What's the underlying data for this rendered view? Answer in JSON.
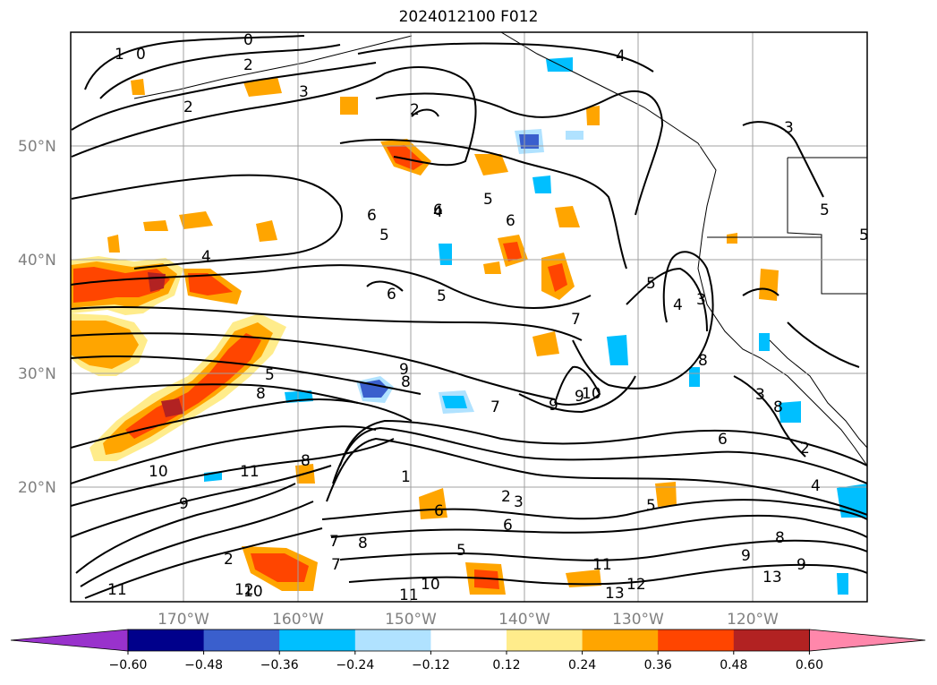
{
  "title": "2024012100 F012",
  "map": {
    "lat_labels": [
      "50°N",
      "40°N",
      "30°N",
      "20°N"
    ],
    "lon_labels": [
      "170°W",
      "160°W",
      "150°W",
      "140°W",
      "130°W",
      "120°W"
    ],
    "contour_labels": [
      "1",
      "0",
      "0",
      "2",
      "3",
      "2",
      "2",
      "4",
      "3",
      "4",
      "6",
      "5",
      "6",
      "6",
      "6",
      "5",
      "5",
      "5",
      "4",
      "3",
      "8",
      "7",
      "9",
      "9",
      "10",
      "7",
      "8",
      "9",
      "8",
      "5",
      "3",
      "6",
      "8",
      "2",
      "4",
      "10",
      "11",
      "8",
      "1",
      "2",
      "3",
      "6",
      "5",
      "8",
      "6",
      "7",
      "9",
      "11",
      "12",
      "13",
      "13",
      "10",
      "11",
      "12",
      "7",
      "8",
      "5",
      "9",
      "10",
      "11",
      "9",
      "2",
      "5",
      "5",
      "4"
    ]
  },
  "colorbar": {
    "ticks": [
      "−0.60",
      "−0.48",
      "−0.36",
      "−0.24",
      "−0.12",
      "0.12",
      "0.24",
      "0.36",
      "0.48",
      "0.60"
    ],
    "colors": [
      "#9932cc",
      "#00008b",
      "#3a5fcd",
      "#00bfff",
      "#b0e2ff",
      "#ffffff",
      "#ffec8b",
      "#ffa500",
      "#ff4500",
      "#b22222",
      "#ff87ab"
    ]
  }
}
